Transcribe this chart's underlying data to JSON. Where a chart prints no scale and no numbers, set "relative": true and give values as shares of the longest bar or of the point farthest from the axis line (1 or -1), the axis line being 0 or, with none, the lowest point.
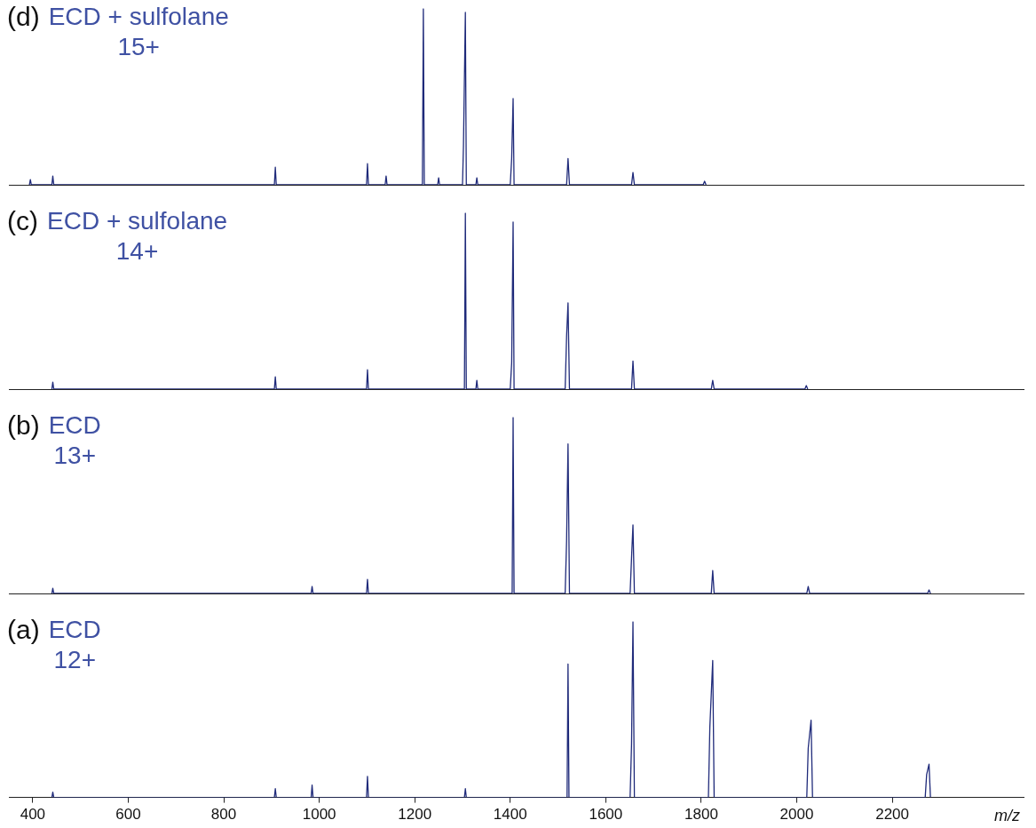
{
  "chart_data": [
    {
      "type": "line",
      "title": "(d)",
      "subtitle": "ECD + sulfolane\n15+",
      "relative": true,
      "tick_labels": false,
      "xlim": [
        350,
        2475
      ],
      "legend": false,
      "marker": "none",
      "series": [
        {
          "color": "#1f2a7a",
          "x": [
            393,
            395,
            397,
            440,
            442,
            444,
            906,
            908,
            910,
            1099,
            1101,
            1103,
            1138,
            1140,
            1142,
            1216,
            1218,
            1220,
            1248,
            1250,
            1252,
            1300,
            1302,
            1306,
            1308,
            1328,
            1330,
            1332,
            1400,
            1403,
            1406,
            1408,
            1518,
            1521,
            1524,
            1654,
            1657,
            1660,
            1804,
            1807,
            1810
          ],
          "values": [
            0,
            0.03,
            0,
            0,
            0.05,
            0,
            0,
            0.1,
            0,
            0,
            0.12,
            0,
            0,
            0.05,
            0,
            0,
            1,
            0,
            0,
            0.04,
            0,
            0,
            0.22,
            0.98,
            0,
            0,
            0.04,
            0,
            0,
            0.15,
            0.49,
            0,
            0,
            0.15,
            0,
            0,
            0.07,
            0,
            0,
            0.02,
            0
          ]
        }
      ]
    },
    {
      "type": "line",
      "title": "(c)",
      "subtitle": "ECD + sulfolane\n14+",
      "relative": true,
      "tick_labels": false,
      "xlim": [
        350,
        2475
      ],
      "legend": false,
      "marker": "none",
      "series": [
        {
          "color": "#1f2a7a",
          "x": [
            440,
            442,
            444,
            906,
            908,
            910,
            1099,
            1101,
            1103,
            1304,
            1306,
            1308,
            1328,
            1330,
            1332,
            1400,
            1403,
            1406,
            1408,
            1515,
            1518,
            1521,
            1524,
            1654,
            1657,
            1660,
            1821,
            1824,
            1827,
            2017,
            2020,
            2023
          ],
          "values": [
            0,
            0.04,
            0,
            0,
            0.07,
            0,
            0,
            0.11,
            0,
            0,
            1,
            0,
            0,
            0.05,
            0,
            0,
            0.15,
            0.95,
            0,
            0,
            0.3,
            0.49,
            0,
            0,
            0.16,
            0,
            0,
            0.05,
            0,
            0,
            0.02,
            0
          ]
        }
      ]
    },
    {
      "type": "line",
      "title": "(b)",
      "subtitle": "ECD\n13+",
      "relative": true,
      "tick_labels": false,
      "xlim": [
        350,
        2475
      ],
      "legend": false,
      "marker": "none",
      "series": [
        {
          "color": "#1f2a7a",
          "x": [
            440,
            442,
            444,
            983,
            985,
            987,
            1099,
            1101,
            1103,
            1404,
            1406,
            1408,
            1515,
            1518,
            1521,
            1524,
            1651,
            1654,
            1657,
            1660,
            1821,
            1824,
            1827,
            2021,
            2024,
            2027,
            2274,
            2277,
            2280
          ],
          "values": [
            0,
            0.03,
            0,
            0,
            0.04,
            0,
            0,
            0.08,
            0,
            0,
            1,
            0,
            0,
            0.3,
            0.85,
            0,
            0,
            0.2,
            0.39,
            0,
            0,
            0.13,
            0,
            0,
            0.04,
            0,
            0,
            0.02,
            0
          ]
        }
      ]
    },
    {
      "type": "line",
      "title": "(a)",
      "subtitle": "ECD\n12+",
      "xlabel": "m/z",
      "relative": true,
      "tick_labels": "x",
      "xlim": [
        350,
        2475
      ],
      "xticks": [
        400,
        600,
        800,
        1000,
        1200,
        1400,
        1600,
        1800,
        2000,
        2200
      ],
      "legend": false,
      "marker": "none",
      "series": [
        {
          "color": "#1f2a7a",
          "x": [
            440,
            442,
            444,
            906,
            908,
            910,
            983,
            985,
            987,
            1099,
            1101,
            1103,
            1304,
            1306,
            1308,
            1519,
            1521,
            1523,
            1651,
            1654,
            1657,
            1660,
            1815,
            1818,
            1824,
            1827,
            2021,
            2024,
            2030,
            2033,
            2269,
            2272,
            2277,
            2280
          ],
          "values": [
            0,
            0.03,
            0,
            0,
            0.05,
            0,
            0,
            0.07,
            0,
            0,
            0.12,
            0,
            0,
            0.05,
            0,
            0,
            0.76,
            0,
            0,
            0.3,
            1,
            0,
            0,
            0.4,
            0.78,
            0,
            0,
            0.28,
            0.44,
            0,
            0,
            0.13,
            0.19,
            0
          ]
        }
      ]
    }
  ]
}
